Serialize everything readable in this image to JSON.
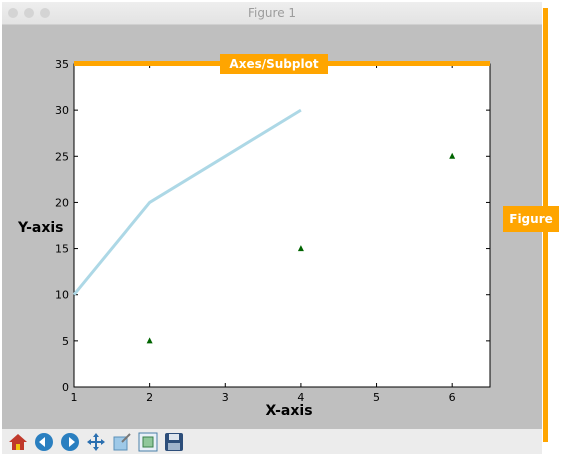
{
  "window": {
    "title": "Figure 1"
  },
  "annotations": {
    "figure_tag": "Figure",
    "axes_tag": "Axes/Subplot",
    "color": "#ffa500"
  },
  "toolbar": {
    "icons": [
      "home-icon",
      "back-arrow-icon",
      "forward-arrow-icon",
      "pan-icon",
      "zoom-icon",
      "subplots-icon",
      "save-icon"
    ]
  },
  "chart_data": {
    "type": "line",
    "title": "",
    "xlabel": "X-axis",
    "ylabel": "Y-axis",
    "xlim": [
      1,
      6.5
    ],
    "ylim": [
      0,
      35
    ],
    "xticks": [
      1,
      2,
      3,
      4,
      5,
      6
    ],
    "yticks": [
      0,
      5,
      10,
      15,
      20,
      25,
      30,
      35
    ],
    "grid": false,
    "series": [
      {
        "type": "line",
        "color": "#add8e6",
        "x": [
          1,
          2,
          3,
          4
        ],
        "y": [
          10,
          20,
          25,
          30
        ]
      },
      {
        "type": "scatter",
        "marker": "triangle",
        "color": "#006400",
        "x": [
          2,
          4,
          6
        ],
        "y": [
          5,
          15,
          25
        ]
      }
    ]
  }
}
